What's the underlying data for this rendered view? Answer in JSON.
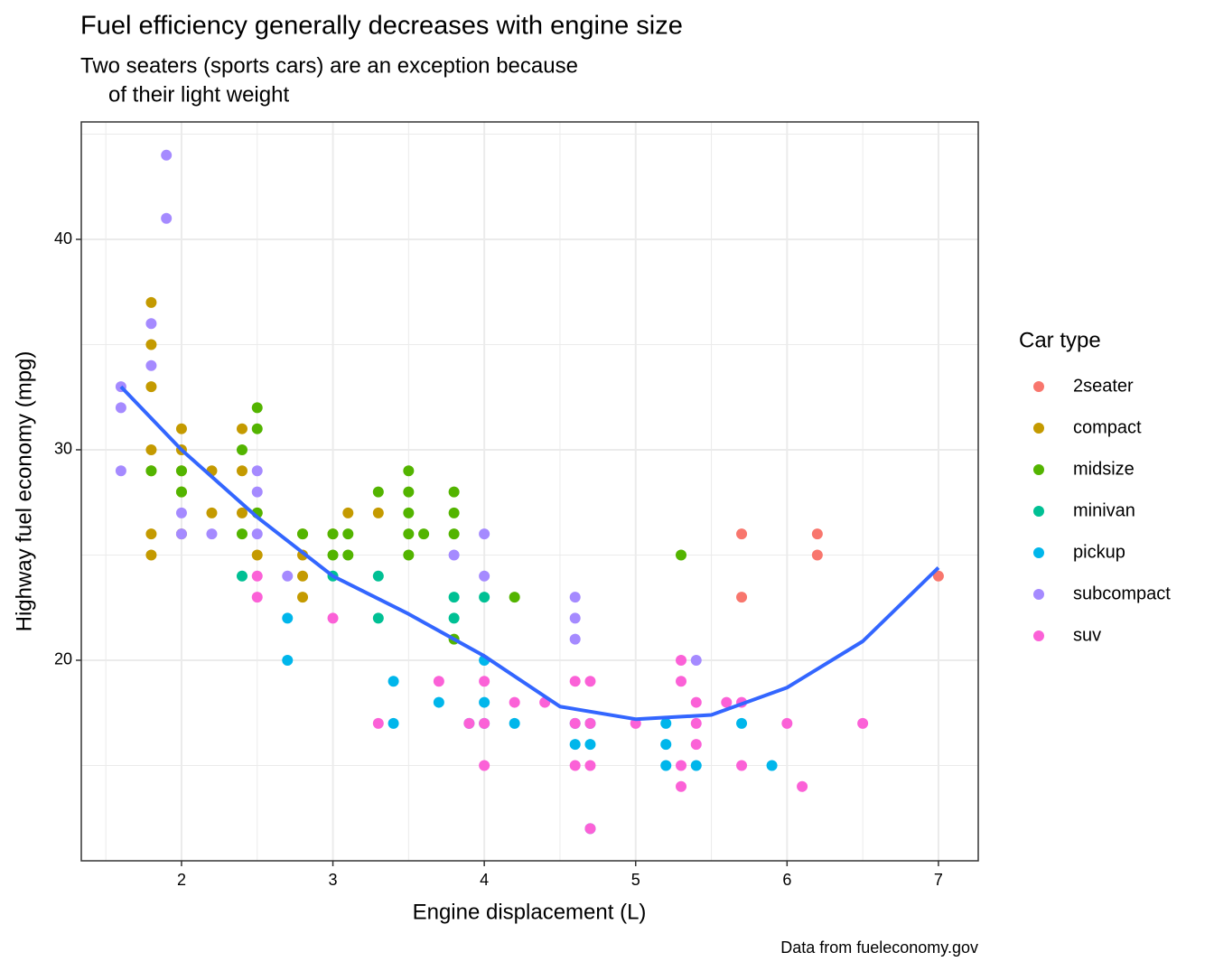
{
  "chart_data": {
    "type": "scatter",
    "title": "Fuel efficiency generally decreases with engine size",
    "subtitle": [
      "Two seaters (sports cars) are an exception because",
      "of their light weight"
    ],
    "x_label": "Engine displacement (L)",
    "y_label": "Highway fuel economy (mpg)",
    "caption": "Data from fueleconomy.gov",
    "legend_title": "Car type",
    "xlim": [
      1.338,
      7.263
    ],
    "ylim": [
      10.47,
      45.58
    ],
    "xticks": [
      2,
      3,
      4,
      5,
      6,
      7
    ],
    "yticks": [
      20,
      30,
      40
    ],
    "xminor": [
      1.5,
      2.5,
      3.5,
      4.5,
      5.5,
      6.5
    ],
    "yminor": [
      15,
      25,
      35,
      45
    ],
    "grid": true,
    "series": [
      {
        "name": "2seater",
        "color": "#F8766D",
        "x": [
          5.7,
          5.7,
          6.2,
          6.2,
          7.0
        ],
        "values": [
          26,
          23,
          26,
          25,
          24
        ]
      },
      {
        "name": "compact",
        "color": "#C49A00",
        "x": [
          1.8,
          1.8,
          1.8,
          1.8,
          1.8,
          1.8,
          1.8,
          2.0,
          2.0,
          2.0,
          2.0,
          2.0,
          2.2,
          2.2,
          2.4,
          2.4,
          2.4,
          2.5,
          2.5,
          2.8,
          2.8,
          2.8,
          2.8,
          3.0,
          3.1,
          3.3
        ],
        "values": [
          37,
          35,
          33,
          30,
          29,
          26,
          25,
          31,
          30,
          29,
          28,
          26,
          29,
          27,
          31,
          29,
          27,
          27,
          25,
          26,
          25,
          24,
          23,
          26,
          27,
          27
        ]
      },
      {
        "name": "midsize",
        "color": "#53B400",
        "x": [
          1.8,
          2.0,
          2.0,
          2.4,
          2.4,
          2.5,
          2.5,
          2.5,
          2.8,
          3.0,
          3.0,
          3.1,
          3.1,
          3.3,
          3.5,
          3.5,
          3.5,
          3.5,
          3.5,
          3.6,
          3.8,
          3.8,
          3.8,
          3.8,
          4.2,
          5.3
        ],
        "values": [
          29,
          29,
          28,
          30,
          26,
          32,
          31,
          27,
          26,
          26,
          25,
          26,
          25,
          28,
          29,
          28,
          27,
          26,
          25,
          26,
          28,
          27,
          26,
          21,
          23,
          25
        ]
      },
      {
        "name": "minivan",
        "color": "#00C094",
        "x": [
          2.4,
          3.0,
          3.3,
          3.3,
          3.8,
          3.8,
          4.0
        ],
        "values": [
          24,
          24,
          24,
          22,
          23,
          22,
          23
        ]
      },
      {
        "name": "pickup",
        "color": "#00B6EB",
        "x": [
          2.7,
          2.7,
          3.4,
          3.4,
          3.7,
          3.9,
          4.0,
          4.0,
          4.0,
          4.2,
          4.6,
          4.6,
          4.7,
          4.7,
          4.7,
          5.2,
          5.2,
          5.2,
          5.4,
          5.7,
          5.9
        ],
        "values": [
          22,
          20,
          19,
          17,
          18,
          17,
          20,
          18,
          17,
          17,
          17,
          16,
          17,
          16,
          12,
          17,
          16,
          15,
          15,
          17,
          15
        ]
      },
      {
        "name": "subcompact",
        "color": "#A58AFF",
        "x": [
          1.6,
          1.6,
          1.6,
          1.8,
          1.8,
          1.9,
          1.9,
          2.0,
          2.0,
          2.2,
          2.5,
          2.5,
          2.5,
          2.7,
          3.8,
          4.0,
          4.0,
          4.6,
          4.6,
          4.6,
          5.4
        ],
        "values": [
          33,
          32,
          29,
          36,
          34,
          44,
          41,
          27,
          26,
          26,
          29,
          28,
          26,
          24,
          25,
          26,
          24,
          23,
          22,
          21,
          20
        ]
      },
      {
        "name": "suv",
        "color": "#FB61D7",
        "x": [
          2.5,
          2.5,
          3.0,
          3.3,
          3.7,
          3.9,
          4.0,
          4.0,
          4.0,
          4.2,
          4.4,
          4.6,
          4.6,
          4.6,
          4.7,
          4.7,
          4.7,
          4.7,
          5.0,
          5.3,
          5.3,
          5.3,
          5.3,
          5.4,
          5.4,
          5.4,
          5.6,
          5.7,
          5.7,
          6.0,
          6.1,
          6.5
        ],
        "values": [
          24,
          23,
          22,
          17,
          19,
          17,
          19,
          17,
          15,
          18,
          18,
          19,
          17,
          15,
          19,
          17,
          15,
          12,
          17,
          20,
          19,
          15,
          14,
          18,
          17,
          16,
          18,
          18,
          15,
          17,
          14,
          17
        ]
      }
    ],
    "smooth": {
      "color": "#3366FF",
      "x": [
        1.6,
        2.0,
        2.5,
        3.0,
        3.5,
        4.0,
        4.5,
        5.0,
        5.5,
        6.0,
        6.5,
        7.0
      ],
      "values": [
        33,
        30,
        26.8,
        24,
        22.2,
        20.2,
        17.8,
        17.2,
        17.4,
        18.7,
        20.9,
        24.4
      ]
    }
  }
}
